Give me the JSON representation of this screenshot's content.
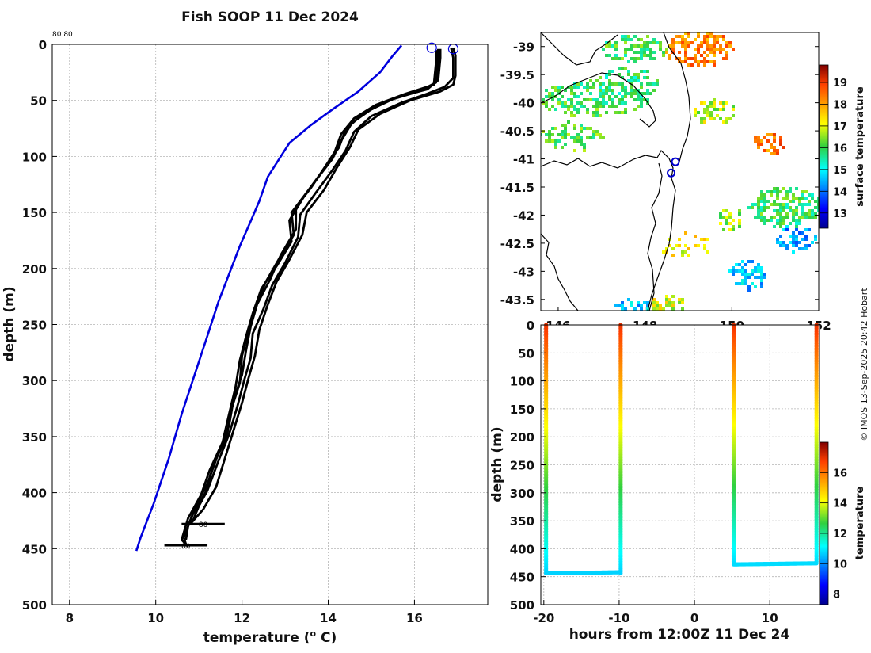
{
  "title": "Fish SOOP 11 Dec 2024",
  "corner_label": "80 80",
  "credit": "© IMOS 13-Sep-2025 20:42 Hobart",
  "colors": {
    "reference": "#0000dd",
    "profiles": "#000000"
  },
  "chart_data": [
    {
      "id": "profiles",
      "type": "line",
      "title": "Fish SOOP 11 Dec 2024",
      "xlabel": "temperature (",
      "xlabel_super": "o",
      "xlabel_tail": " C)",
      "ylabel": "depth (m)",
      "xlim": [
        7.6,
        17.7
      ],
      "ylim": [
        500,
        0
      ],
      "xticks": [
        8,
        10,
        12,
        14,
        16
      ],
      "yticks": [
        0,
        50,
        100,
        150,
        200,
        250,
        300,
        350,
        400,
        450,
        500
      ],
      "grid": true,
      "end_labels": [
        {
          "text": "80",
          "x": 11.1,
          "y": 428
        },
        {
          "text": "80",
          "x": 10.7,
          "y": 447
        }
      ],
      "series": [
        {
          "name": "reference",
          "color": "#0000dd",
          "points": [
            [
              15.7,
              1
            ],
            [
              15.5,
              10
            ],
            [
              15.2,
              25
            ],
            [
              14.7,
              42
            ],
            [
              14.1,
              58
            ],
            [
              13.6,
              72
            ],
            [
              13.1,
              88
            ],
            [
              12.9,
              100
            ],
            [
              12.6,
              118
            ],
            [
              12.4,
              140
            ],
            [
              12.2,
              158
            ],
            [
              11.95,
              180
            ],
            [
              11.7,
              205
            ],
            [
              11.45,
              230
            ],
            [
              11.2,
              260
            ],
            [
              10.9,
              295
            ],
            [
              10.6,
              330
            ],
            [
              10.3,
              370
            ],
            [
              9.95,
              410
            ],
            [
              9.65,
              440
            ],
            [
              9.55,
              452
            ]
          ]
        },
        {
          "name": "profile-1",
          "color": "#000000",
          "points": [
            [
              16.9,
              3
            ],
            [
              16.95,
              10
            ],
            [
              16.95,
              28
            ],
            [
              16.9,
              36
            ],
            [
              16.6,
              42
            ],
            [
              15.9,
              50
            ],
            [
              15.2,
              62
            ],
            [
              14.7,
              76
            ],
            [
              14.5,
              92
            ],
            [
              14.2,
              110
            ],
            [
              13.9,
              130
            ],
            [
              13.5,
              150
            ],
            [
              13.4,
              170
            ],
            [
              13.1,
              192
            ],
            [
              12.8,
              212
            ],
            [
              12.6,
              232
            ],
            [
              12.4,
              255
            ],
            [
              12.3,
              278
            ],
            [
              12.15,
              298
            ],
            [
              12.0,
              320
            ],
            [
              11.8,
              345
            ],
            [
              11.6,
              370
            ],
            [
              11.4,
              395
            ],
            [
              11.1,
              415
            ],
            [
              10.8,
              428
            ]
          ]
        },
        {
          "name": "profile-2",
          "color": "#000000",
          "points": [
            [
              16.85,
              3
            ],
            [
              16.9,
              12
            ],
            [
              16.9,
              30
            ],
            [
              16.7,
              38
            ],
            [
              16.3,
              44
            ],
            [
              15.7,
              52
            ],
            [
              15.0,
              64
            ],
            [
              14.6,
              78
            ],
            [
              14.4,
              95
            ],
            [
              14.1,
              112
            ],
            [
              13.7,
              133
            ],
            [
              13.35,
              152
            ],
            [
              13.3,
              172
            ],
            [
              13.0,
              195
            ],
            [
              12.7,
              215
            ],
            [
              12.5,
              236
            ],
            [
              12.25,
              258
            ],
            [
              12.2,
              280
            ],
            [
              12.05,
              300
            ],
            [
              11.9,
              322
            ],
            [
              11.7,
              348
            ],
            [
              11.45,
              372
            ],
            [
              11.2,
              398
            ],
            [
              11.0,
              412
            ],
            [
              10.85,
              426
            ]
          ]
        },
        {
          "name": "profile-3",
          "color": "#000000",
          "points": [
            [
              16.6,
              4
            ],
            [
              16.6,
              12
            ],
            [
              16.55,
              32
            ],
            [
              16.3,
              40
            ],
            [
              15.6,
              47
            ],
            [
              15.0,
              58
            ],
            [
              14.55,
              70
            ],
            [
              14.3,
              86
            ],
            [
              14.1,
              102
            ],
            [
              13.7,
              122
            ],
            [
              13.25,
              145
            ],
            [
              13.25,
              165
            ],
            [
              12.9,
              188
            ],
            [
              12.65,
              210
            ],
            [
              12.35,
              232
            ],
            [
              12.2,
              252
            ],
            [
              12.1,
              272
            ],
            [
              12.0,
              295
            ],
            [
              11.8,
              318
            ],
            [
              11.7,
              340
            ],
            [
              11.45,
              365
            ],
            [
              11.2,
              392
            ],
            [
              10.95,
              410
            ],
            [
              10.75,
              430
            ],
            [
              10.7,
              442
            ]
          ]
        },
        {
          "name": "profile-4",
          "color": "#000000",
          "points": [
            [
              16.55,
              4
            ],
            [
              16.55,
              14
            ],
            [
              16.5,
              34
            ],
            [
              16.1,
              42
            ],
            [
              15.4,
              50
            ],
            [
              14.8,
              62
            ],
            [
              14.4,
              76
            ],
            [
              14.25,
              92
            ],
            [
              13.95,
              108
            ],
            [
              13.6,
              128
            ],
            [
              13.15,
              150
            ],
            [
              13.2,
              170
            ],
            [
              12.85,
              192
            ],
            [
              12.55,
              212
            ],
            [
              12.3,
              236
            ],
            [
              12.15,
              256
            ],
            [
              12.0,
              278
            ],
            [
              11.95,
              302
            ],
            [
              11.75,
              326
            ],
            [
              11.65,
              350
            ],
            [
              11.35,
              374
            ],
            [
              11.15,
              400
            ],
            [
              10.85,
              420
            ],
            [
              10.65,
              440
            ],
            [
              10.7,
              446
            ]
          ]
        },
        {
          "name": "profile-5",
          "color": "#000000",
          "points": [
            [
              16.5,
              5
            ],
            [
              16.5,
              16
            ],
            [
              16.45,
              36
            ],
            [
              15.8,
              44
            ],
            [
              15.1,
              54
            ],
            [
              14.6,
              66
            ],
            [
              14.3,
              80
            ],
            [
              14.15,
              96
            ],
            [
              13.85,
              114
            ],
            [
              13.45,
              135
            ],
            [
              13.1,
              157
            ],
            [
              13.15,
              176
            ],
            [
              12.8,
              198
            ],
            [
              12.45,
              218
            ],
            [
              12.25,
              240
            ],
            [
              12.1,
              260
            ],
            [
              11.95,
              282
            ],
            [
              11.85,
              306
            ],
            [
              11.7,
              330
            ],
            [
              11.55,
              355
            ],
            [
              11.25,
              380
            ],
            [
              11.05,
              402
            ],
            [
              10.75,
              423
            ],
            [
              10.6,
              442
            ],
            [
              10.75,
              448
            ]
          ]
        }
      ]
    },
    {
      "id": "map",
      "type": "heatmap",
      "colorbar_label": "surface temperature",
      "colorbar_ticks": [
        13,
        14,
        15,
        16,
        17,
        18,
        19
      ],
      "colorbar_range": [
        12.3,
        19.8
      ],
      "lon_ticks": [
        "146",
        "148",
        "150",
        "152"
      ],
      "lat_ticks": [
        "-39",
        "-39.5",
        "-40",
        "-40.5",
        "-41",
        "-41.5",
        "-42",
        "-42.5",
        "-43",
        "-43.5"
      ],
      "lon_range": [
        145.6,
        152.0
      ],
      "lat_range": [
        -38.75,
        -43.7
      ],
      "markers": [
        {
          "name": "marker-1",
          "lon": 148.6,
          "lat": -41.25
        },
        {
          "name": "marker-2",
          "lon": 148.7,
          "lat": -41.05
        }
      ]
    },
    {
      "id": "track",
      "type": "scatter",
      "xlabel": "hours from 12:00Z 11 Dec 24",
      "ylabel": "depth (m)",
      "xlim": [
        -20.4,
        16.6
      ],
      "ylim": [
        500,
        0
      ],
      "xticks": [
        -20,
        -10,
        0,
        10
      ],
      "yticks": [
        0,
        50,
        100,
        150,
        200,
        250,
        300,
        350,
        400,
        450,
        500
      ],
      "colorbar_label": "temperature",
      "colorbar_ticks": [
        8,
        10,
        12,
        14,
        16
      ],
      "colorbar_range": [
        7.3,
        18.0
      ],
      "casts": [
        {
          "name": "cast-a",
          "x_down": -19.7,
          "x_up": -9.8,
          "bottom": 444,
          "t_top": 17.0,
          "t_bottom": 10.7
        },
        {
          "name": "cast-b",
          "x_down": 5.2,
          "x_up": 16.2,
          "bottom": 428,
          "t_top": 17.0,
          "t_bottom": 10.8
        }
      ]
    }
  ]
}
